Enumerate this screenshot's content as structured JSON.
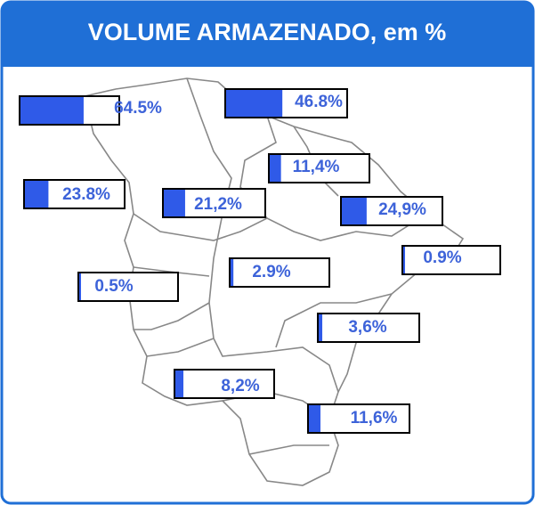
{
  "title": "VOLUME ARMAZENADO, em %",
  "range": [
    0,
    100
  ],
  "regions": [
    {
      "label": "64.5%",
      "value": 64.5
    },
    {
      "label": "46.8%",
      "value": 46.8
    },
    {
      "label": "11,4%",
      "value": 11.4
    },
    {
      "label": "23.8%",
      "value": 23.8
    },
    {
      "label": "21,2%",
      "value": 21.2
    },
    {
      "label": "24,9%",
      "value": 24.9
    },
    {
      "label": "0.9%",
      "value": 0.9
    },
    {
      "label": "2.9%",
      "value": 2.9
    },
    {
      "label": "0.5%",
      "value": 0.5
    },
    {
      "label": "3,6%",
      "value": 3.6
    },
    {
      "label": "8,2%",
      "value": 8.2
    },
    {
      "label": "11,6%",
      "value": 11.6
    }
  ]
}
